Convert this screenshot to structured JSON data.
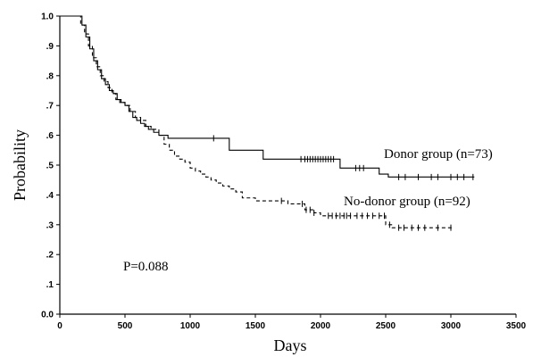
{
  "chart_data": {
    "type": "line",
    "subtype": "kaplan-meier",
    "xlabel": "Days",
    "ylabel": "Probability",
    "xlim": [
      0,
      3500
    ],
    "ylim": [
      0,
      1.0
    ],
    "x_ticks": [
      0,
      500,
      1000,
      1500,
      2000,
      2500,
      3000,
      3500
    ],
    "x_tick_labels": [
      "0",
      "500",
      "1000",
      "1500",
      "2000",
      "2500",
      "3000",
      "3500"
    ],
    "y_ticks": [
      0,
      0.1,
      0.2,
      0.3,
      0.4,
      0.5,
      0.6,
      0.7,
      0.8,
      0.9,
      1.0
    ],
    "y_tick_labels": [
      "0.0",
      ".1",
      ".2",
      ".3",
      ".4",
      ".5",
      ".6",
      ".7",
      ".8",
      ".9",
      "1.0"
    ],
    "grid": false,
    "annotation": "P=0.088",
    "series": [
      {
        "name": "Donor group (n=73)",
        "style": "solid",
        "x": [
          0,
          130,
          170,
          200,
          230,
          260,
          290,
          320,
          350,
          380,
          410,
          440,
          470,
          500,
          530,
          560,
          590,
          620,
          650,
          680,
          720,
          760,
          800,
          830,
          860,
          1300,
          1560,
          1750,
          2150,
          2450,
          2520
        ],
        "y": [
          1.0,
          1.0,
          0.97,
          0.93,
          0.89,
          0.85,
          0.82,
          0.79,
          0.77,
          0.75,
          0.74,
          0.72,
          0.71,
          0.7,
          0.68,
          0.66,
          0.65,
          0.64,
          0.63,
          0.62,
          0.61,
          0.6,
          0.6,
          0.59,
          0.59,
          0.55,
          0.52,
          0.52,
          0.49,
          0.47,
          0.46
        ],
        "end_x": 3180,
        "censored_x": [
          1180,
          1850,
          1880,
          1900,
          1920,
          1940,
          1960,
          1980,
          2000,
          2020,
          2040,
          2060,
          2080,
          2100,
          2270,
          2300,
          2330,
          2600,
          2650,
          2750,
          2850,
          2900,
          3000,
          3050,
          3100,
          3170
        ]
      },
      {
        "name": "No-donor group (n=92)",
        "style": "dashed",
        "x": [
          0,
          120,
          160,
          190,
          220,
          250,
          280,
          310,
          340,
          370,
          400,
          430,
          460,
          500,
          540,
          580,
          620,
          660,
          700,
          760,
          800,
          840,
          880,
          920,
          960,
          1000,
          1040,
          1080,
          1120,
          1160,
          1200,
          1250,
          1300,
          1350,
          1400,
          1500,
          1750,
          1880,
          1950,
          2000,
          2050,
          2500,
          2550
        ],
        "y": [
          1.0,
          1.0,
          0.97,
          0.94,
          0.9,
          0.86,
          0.83,
          0.8,
          0.78,
          0.76,
          0.74,
          0.72,
          0.71,
          0.7,
          0.68,
          0.66,
          0.65,
          0.63,
          0.62,
          0.6,
          0.57,
          0.55,
          0.53,
          0.52,
          0.51,
          0.49,
          0.48,
          0.47,
          0.46,
          0.45,
          0.44,
          0.43,
          0.42,
          0.41,
          0.39,
          0.38,
          0.37,
          0.35,
          0.34,
          0.33,
          0.33,
          0.3,
          0.29
        ],
        "end_x": 3010,
        "censored_x": [
          1700,
          1860,
          1890,
          1920,
          1950,
          2060,
          2090,
          2120,
          2150,
          2180,
          2200,
          2230,
          2280,
          2320,
          2360,
          2400,
          2450,
          2490,
          2530,
          2600,
          2640,
          2700,
          2750,
          2800,
          2900,
          3000
        ]
      }
    ]
  }
}
